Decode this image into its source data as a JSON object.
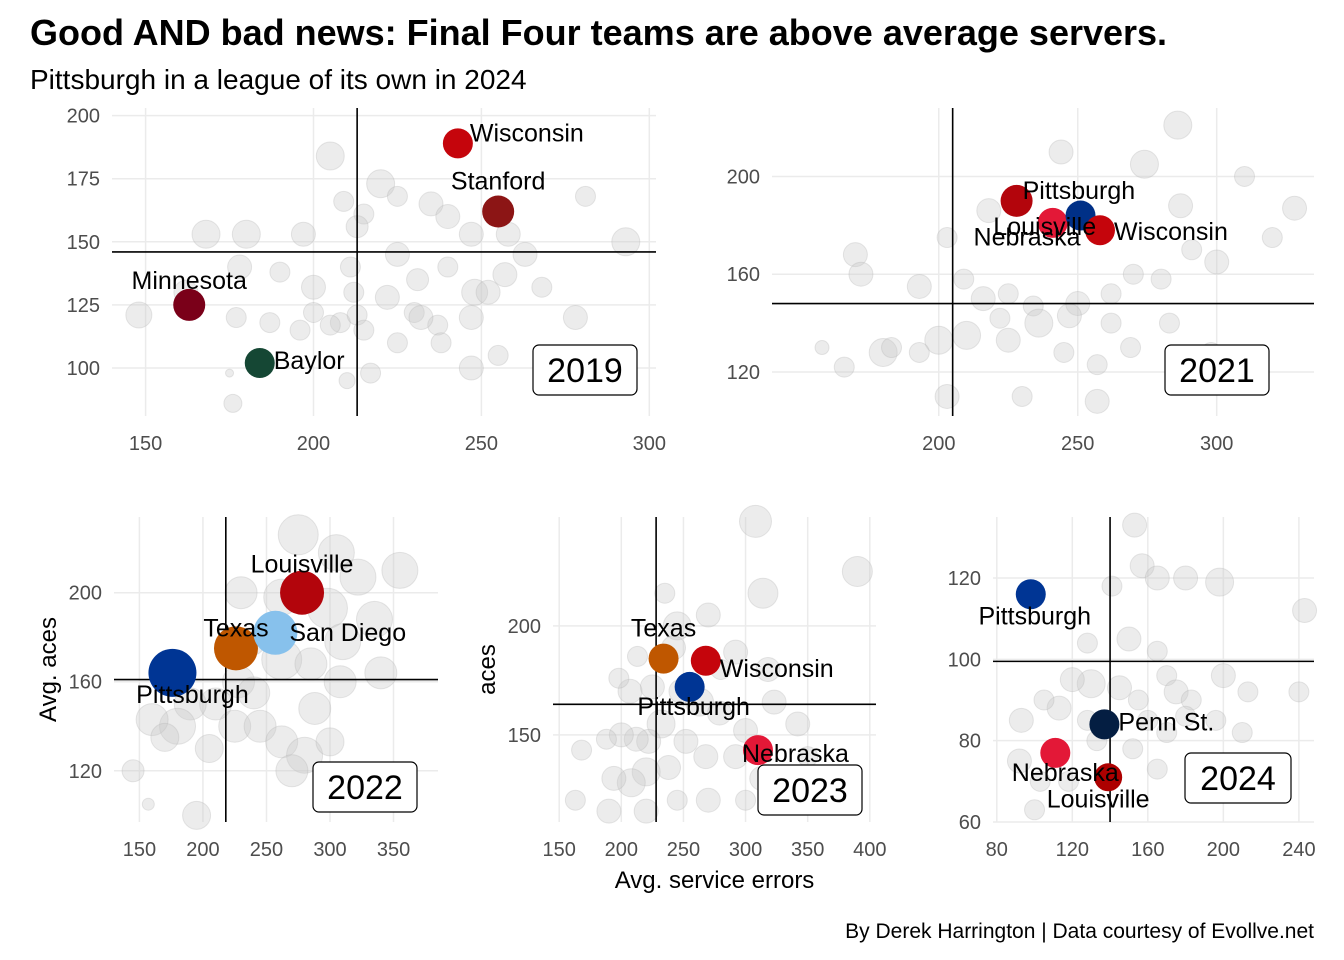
{
  "title": "Good AND bad news: Final Four teams are above average servers.",
  "subtitle": "Pittsburgh in a league of its own in 2024",
  "caption": "By Derek Harrington  |  Data courtesy of Evollve.net",
  "chart_data": [
    {
      "type": "scatter",
      "year_label": "2019",
      "xlabel": "",
      "ylabel": "",
      "xlim": [
        140,
        302
      ],
      "ylim": [
        81,
        203
      ],
      "xticks": [
        150,
        200,
        250,
        300
      ],
      "yticks": [
        100,
        125,
        150,
        175,
        200
      ],
      "xline": 213,
      "yline": 146,
      "background_points": [
        [
          162,
          130,
          12
        ],
        [
          205,
          184,
          14
        ],
        [
          209,
          166,
          10
        ],
        [
          215,
          161,
          10
        ],
        [
          220,
          173,
          14
        ],
        [
          225,
          168,
          10
        ],
        [
          235,
          165,
          12
        ],
        [
          240,
          160,
          12
        ],
        [
          247,
          153,
          12
        ],
        [
          258,
          153,
          12
        ],
        [
          281,
          168,
          10
        ],
        [
          293,
          150,
          14
        ],
        [
          213,
          156,
          11
        ],
        [
          211,
          140,
          10
        ],
        [
          225,
          145,
          12
        ],
        [
          231,
          135,
          11
        ],
        [
          240,
          140,
          10
        ],
        [
          248,
          130,
          13
        ],
        [
          252,
          130,
          12
        ],
        [
          257,
          137,
          12
        ],
        [
          263,
          145,
          12
        ],
        [
          268,
          132,
          10
        ],
        [
          278,
          120,
          12
        ],
        [
          197,
          153,
          12
        ],
        [
          180,
          153,
          14
        ],
        [
          168,
          153,
          14
        ],
        [
          178,
          140,
          12
        ],
        [
          190,
          138,
          10
        ],
        [
          200,
          132,
          12
        ],
        [
          212,
          130,
          10
        ],
        [
          222,
          128,
          12
        ],
        [
          230,
          122,
          10
        ],
        [
          237,
          117,
          10
        ],
        [
          247,
          120,
          12
        ],
        [
          200,
          122,
          10
        ],
        [
          208,
          118,
          10
        ],
        [
          213,
          121,
          10
        ],
        [
          177,
          120,
          10
        ],
        [
          187,
          118,
          10
        ],
        [
          196,
          115,
          10
        ],
        [
          205,
          117,
          10
        ],
        [
          215,
          115,
          10
        ],
        [
          225,
          110,
          10
        ],
        [
          232,
          120,
          12
        ],
        [
          238,
          110,
          10
        ],
        [
          247,
          100,
          12
        ],
        [
          255,
          105,
          10
        ],
        [
          148,
          121,
          13
        ],
        [
          175,
          98,
          4
        ],
        [
          176,
          86,
          9
        ],
        [
          217,
          98,
          10
        ],
        [
          210,
          95,
          8
        ]
      ],
      "teams": [
        {
          "name": "Wisconsin",
          "x": 243,
          "y": 189,
          "color": "#c5050c",
          "size": 15
        },
        {
          "name": "Stanford",
          "x": 255,
          "y": 162,
          "color": "#8c1515",
          "size": 16
        },
        {
          "name": "Minnesota",
          "x": 163,
          "y": 125,
          "color": "#7a0019",
          "size": 16
        },
        {
          "name": "Baylor",
          "x": 184,
          "y": 102,
          "color": "#154734",
          "size": 15
        }
      ]
    },
    {
      "type": "scatter",
      "year_label": "2021",
      "xlabel": "",
      "ylabel": "",
      "xlim": [
        140,
        335
      ],
      "ylim": [
        102,
        228
      ],
      "xticks": [
        200,
        250,
        300
      ],
      "yticks": [
        120,
        160,
        200
      ],
      "xline": 205,
      "yline": 148,
      "background_points": [
        [
          286,
          221,
          14
        ],
        [
          274,
          205,
          14
        ],
        [
          244,
          210,
          12
        ],
        [
          310,
          200,
          10
        ],
        [
          287,
          188,
          12
        ],
        [
          328,
          187,
          12
        ],
        [
          320,
          175,
          10
        ],
        [
          218,
          186,
          12
        ],
        [
          203,
          175,
          10
        ],
        [
          170,
          168,
          12
        ],
        [
          172,
          160,
          12
        ],
        [
          193,
          155,
          12
        ],
        [
          209,
          158,
          10
        ],
        [
          216,
          150,
          12
        ],
        [
          225,
          152,
          10
        ],
        [
          234,
          147,
          10
        ],
        [
          250,
          148,
          12
        ],
        [
          262,
          152,
          10
        ],
        [
          270,
          160,
          10
        ],
        [
          291,
          170,
          10
        ],
        [
          300,
          165,
          12
        ],
        [
          280,
          158,
          10
        ],
        [
          262,
          140,
          10
        ],
        [
          247,
          143,
          12
        ],
        [
          236,
          140,
          14
        ],
        [
          225,
          133,
          12
        ],
        [
          210,
          135,
          14
        ],
        [
          200,
          133,
          14
        ],
        [
          193,
          128,
          10
        ],
        [
          180,
          128,
          14
        ],
        [
          183,
          130,
          10
        ],
        [
          166,
          122,
          10
        ],
        [
          158,
          130,
          7
        ],
        [
          245,
          128,
          10
        ],
        [
          257,
          123,
          10
        ],
        [
          269,
          130,
          10
        ],
        [
          283,
          140,
          10
        ],
        [
          298,
          128,
          10
        ],
        [
          312,
          122,
          10
        ],
        [
          257,
          108,
          12
        ],
        [
          230,
          110,
          10
        ],
        [
          203,
          110,
          12
        ],
        [
          222,
          142,
          10
        ]
      ],
      "teams": [
        {
          "name": "Pittsburgh",
          "x": 228,
          "y": 190,
          "color": "#b3050c",
          "size": 16
        },
        {
          "name": "Louisville",
          "x": 241,
          "y": 181,
          "color": "#e31837",
          "size": 15
        },
        {
          "name": "Nebraska",
          "x": 251,
          "y": 184,
          "color": "#003087",
          "size": 15
        },
        {
          "name": "Wisconsin",
          "x": 258,
          "y": 178,
          "color": "#c5050c",
          "size": 15
        }
      ]
    },
    {
      "type": "scatter",
      "year_label": "2022",
      "xlabel": "",
      "ylabel": "Avg. aces",
      "xlim": [
        130,
        385
      ],
      "ylim": [
        97,
        234
      ],
      "xticks": [
        150,
        200,
        250,
        300,
        350
      ],
      "yticks": [
        120,
        160,
        200
      ],
      "xline": 218,
      "yline": 161,
      "background_points": [
        [
          275,
          226,
          20
        ],
        [
          305,
          218,
          18
        ],
        [
          355,
          210,
          18
        ],
        [
          322,
          207,
          18
        ],
        [
          230,
          200,
          16
        ],
        [
          262,
          198,
          18
        ],
        [
          298,
          193,
          20
        ],
        [
          335,
          188,
          18
        ],
        [
          310,
          178,
          18
        ],
        [
          238,
          178,
          14
        ],
        [
          262,
          170,
          20
        ],
        [
          285,
          168,
          16
        ],
        [
          308,
          160,
          16
        ],
        [
          340,
          164,
          16
        ],
        [
          228,
          160,
          16
        ],
        [
          210,
          150,
          16
        ],
        [
          190,
          150,
          16
        ],
        [
          180,
          140,
          18
        ],
        [
          160,
          143,
          16
        ],
        [
          225,
          140,
          16
        ],
        [
          245,
          140,
          16
        ],
        [
          262,
          133,
          16
        ],
        [
          280,
          127,
          18
        ],
        [
          300,
          133,
          14
        ],
        [
          270,
          120,
          16
        ],
        [
          195,
          100,
          14
        ],
        [
          145,
          120,
          11
        ],
        [
          157,
          105,
          6
        ],
        [
          170,
          135,
          14
        ],
        [
          205,
          130,
          14
        ],
        [
          240,
          155,
          16
        ],
        [
          288,
          148,
          16
        ]
      ],
      "teams": [
        {
          "name": "Louisville",
          "x": 278,
          "y": 200,
          "color": "#b3050c",
          "size": 22
        },
        {
          "name": "Texas",
          "x": 226,
          "y": 175,
          "color": "#bf5700",
          "size": 22
        },
        {
          "name": "San Diego",
          "x": 257,
          "y": 182,
          "color": "#87c1ec",
          "size": 22
        },
        {
          "name": "Pittsburgh",
          "x": 176,
          "y": 164,
          "color": "#003594",
          "size": 24
        }
      ]
    },
    {
      "type": "scatter",
      "year_label": "2023",
      "xlabel": "Avg. service errors",
      "ylabel": "aces",
      "xlim": [
        145,
        405
      ],
      "ylim": [
        110,
        250
      ],
      "xticks": [
        150,
        200,
        250,
        300,
        350,
        400
      ],
      "yticks": [
        150,
        200
      ],
      "xline": 228,
      "yline": 164,
      "background_points": [
        [
          308,
          248,
          16
        ],
        [
          390,
          225,
          15
        ],
        [
          314,
          215,
          15
        ],
        [
          270,
          205,
          12
        ],
        [
          245,
          200,
          14
        ],
        [
          242,
          190,
          12
        ],
        [
          292,
          188,
          12
        ],
        [
          318,
          180,
          12
        ],
        [
          225,
          172,
          12
        ],
        [
          213,
          186,
          10
        ],
        [
          207,
          170,
          12
        ],
        [
          198,
          176,
          10
        ],
        [
          248,
          170,
          12
        ],
        [
          263,
          165,
          14
        ],
        [
          279,
          160,
          12
        ],
        [
          300,
          152,
          12
        ],
        [
          323,
          165,
          12
        ],
        [
          342,
          155,
          12
        ],
        [
          232,
          155,
          14
        ],
        [
          222,
          147,
          12
        ],
        [
          212,
          148,
          12
        ],
        [
          200,
          150,
          12
        ],
        [
          188,
          148,
          10
        ],
        [
          168,
          143,
          10
        ],
        [
          252,
          147,
          12
        ],
        [
          268,
          140,
          12
        ],
        [
          292,
          140,
          12
        ],
        [
          313,
          130,
          12
        ],
        [
          238,
          135,
          12
        ],
        [
          220,
          133,
          14
        ],
        [
          208,
          128,
          14
        ],
        [
          194,
          130,
          12
        ],
        [
          220,
          115,
          12
        ],
        [
          190,
          115,
          12
        ],
        [
          163,
          120,
          10
        ],
        [
          245,
          120,
          10
        ],
        [
          270,
          120,
          12
        ],
        [
          300,
          120,
          10
        ],
        [
          330,
          125,
          10
        ],
        [
          350,
          140,
          10
        ],
        [
          280,
          180,
          10
        ],
        [
          235,
          215,
          10
        ]
      ],
      "teams": [
        {
          "name": "Texas",
          "x": 234,
          "y": 185,
          "color": "#bf5700",
          "size": 15
        },
        {
          "name": "Wisconsin",
          "x": 268,
          "y": 184,
          "color": "#c5050c",
          "size": 15
        },
        {
          "name": "Pittsburgh",
          "x": 255,
          "y": 172,
          "color": "#003594",
          "size": 15
        },
        {
          "name": "Nebraska",
          "x": 310,
          "y": 143,
          "color": "#e31837",
          "size": 15
        }
      ]
    },
    {
      "type": "scatter",
      "year_label": "2024",
      "xlabel": "",
      "ylabel": "",
      "xlim": [
        78,
        248
      ],
      "ylim": [
        60,
        135
      ],
      "xticks": [
        80,
        120,
        160,
        200,
        240
      ],
      "yticks": [
        60,
        80,
        100,
        120
      ],
      "xline": 140,
      "yline": 99.5,
      "background_points": [
        [
          153,
          133,
          12
        ],
        [
          157,
          123,
          12
        ],
        [
          165,
          120,
          12
        ],
        [
          180,
          120,
          12
        ],
        [
          198,
          119,
          14
        ],
        [
          243,
          112,
          12
        ],
        [
          141,
          118,
          10
        ],
        [
          128,
          104,
          10
        ],
        [
          150,
          105,
          12
        ],
        [
          165,
          102,
          10
        ],
        [
          170,
          96,
          10
        ],
        [
          175,
          92,
          12
        ],
        [
          183,
          90,
          10
        ],
        [
          200,
          96,
          12
        ],
        [
          213,
          92,
          10
        ],
        [
          240,
          92,
          10
        ],
        [
          130,
          94,
          14
        ],
        [
          120,
          95,
          12
        ],
        [
          145,
          93,
          12
        ],
        [
          155,
          90,
          10
        ],
        [
          160,
          85,
          10
        ],
        [
          170,
          82,
          10
        ],
        [
          180,
          86,
          10
        ],
        [
          196,
          85,
          10
        ],
        [
          210,
          82,
          10
        ],
        [
          113,
          88,
          12
        ],
        [
          105,
          90,
          10
        ],
        [
          93,
          85,
          12
        ],
        [
          92,
          75,
          12
        ],
        [
          103,
          70,
          10
        ],
        [
          118,
          70,
          10
        ],
        [
          100,
          63,
          10
        ],
        [
          152,
          78,
          10
        ],
        [
          165,
          73,
          10
        ],
        [
          133,
          80,
          10
        ],
        [
          128,
          85,
          10
        ]
      ],
      "teams": [
        {
          "name": "Pittsburgh",
          "x": 98,
          "y": 116,
          "color": "#003594",
          "size": 15
        },
        {
          "name": "Penn St.",
          "x": 137,
          "y": 84,
          "color": "#041e42",
          "size": 15
        },
        {
          "name": "Nebraska",
          "x": 111,
          "y": 77,
          "color": "#e31837",
          "size": 15
        },
        {
          "name": "Louisville",
          "x": 139,
          "y": 71,
          "color": "#ad0000",
          "size": 14
        }
      ]
    }
  ]
}
